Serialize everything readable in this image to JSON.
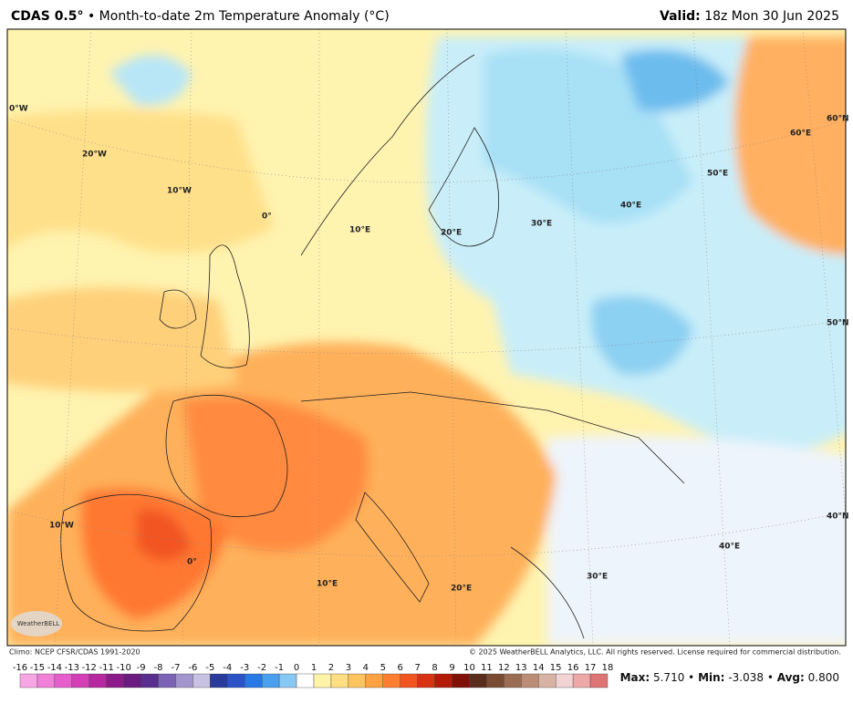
{
  "header": {
    "model": "CDAS 0.5°",
    "separator": "•",
    "title": "Month-to-date 2m Temperature Anomaly (°C)",
    "valid_label": "Valid:",
    "valid": "18z Mon 30 Jun 2025"
  },
  "map": {
    "graticule_labels": [
      "0°W",
      "20°W",
      "10°W",
      "0°",
      "10°E",
      "20°E",
      "30°E",
      "40°E",
      "50°E",
      "60°E",
      "60°N",
      "50°N",
      "40°N",
      "10°W",
      "0°",
      "10°E",
      "20°E",
      "30°E",
      "40°E"
    ],
    "logo": "WeatherBELL"
  },
  "footer": {
    "climo": "Climo: NCEP CFSR/CDAS 1991-2020",
    "copyright": "© 2025 WeatherBELL Analytics, LLC. All rights reserved. License required for commercial distribution."
  },
  "colorbar": {
    "ticks": [
      -16,
      -15,
      -14,
      -13,
      -12,
      -11,
      -10,
      -9,
      -8,
      -7,
      -6,
      -5,
      -4,
      -3,
      -2,
      -1,
      0,
      1,
      2,
      3,
      4,
      5,
      6,
      7,
      8,
      9,
      10,
      11,
      12,
      13,
      14,
      15,
      16,
      17,
      18
    ],
    "colors": [
      "#f7a6e4",
      "#f080d8",
      "#e65ecb",
      "#d43fb6",
      "#b6289f",
      "#8c1a88",
      "#6a1a80",
      "#5a2e8e",
      "#7a62b4",
      "#a294cc",
      "#c8c2e2",
      "#2a3a9a",
      "#2c52c8",
      "#2878e6",
      "#4aa0ee",
      "#88c8f4",
      "#ffffff",
      "#fff4a8",
      "#ffdf82",
      "#ffc45e",
      "#ffa342",
      "#ff7e30",
      "#f25420",
      "#d93212",
      "#b31a08",
      "#7e1006",
      "#5a2c1c",
      "#7a4b32",
      "#9a6c52",
      "#bb8d74",
      "#d8b3a4",
      "#f1d3d3",
      "#efa8a8",
      "#df7474"
    ]
  },
  "stats": {
    "max_label": "Max:",
    "max": "5.710",
    "min_label": "Min:",
    "min": "-3.038",
    "avg_label": "Avg:",
    "avg": "0.800",
    "separator": "•"
  }
}
